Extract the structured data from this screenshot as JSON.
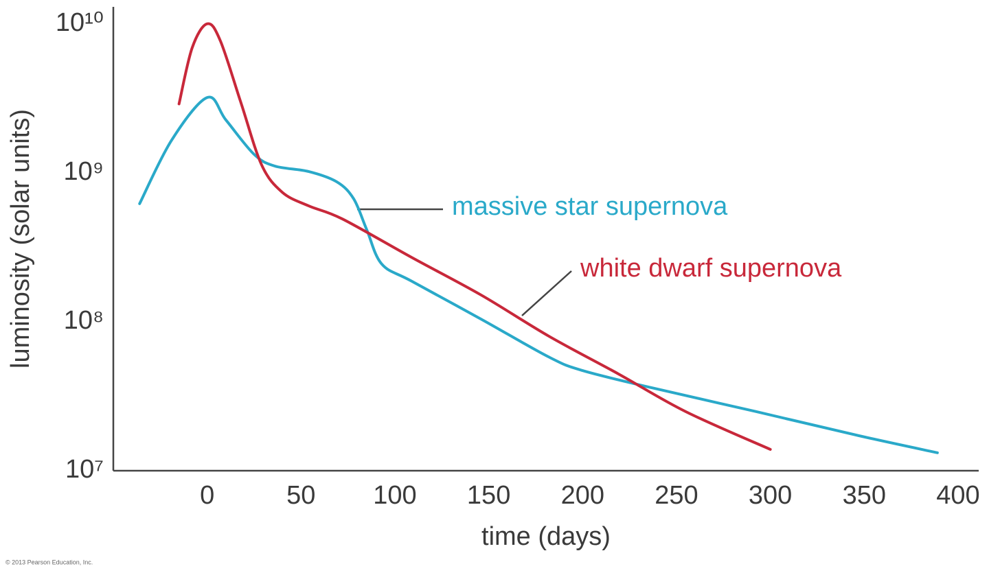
{
  "chart_data": {
    "type": "line",
    "x_label": "time (days)",
    "y_label": "luminosity (solar units)",
    "credit": "© 2013 Pearson Education, Inc.",
    "log_y": true,
    "grid": false,
    "xlim": [
      -50,
      411
    ],
    "ylim": [
      10000000,
      13000000000
    ],
    "xticks": [
      0,
      50,
      100,
      150,
      200,
      250,
      300,
      350,
      400
    ],
    "yticks": [
      {
        "value": 10000000,
        "label": "10⁷"
      },
      {
        "value": 100000000,
        "label": "10⁸"
      },
      {
        "value": 1000000000,
        "label": "10⁹"
      },
      {
        "value": 10000000000,
        "label": "10¹⁰"
      }
    ],
    "series": [
      {
        "name": "massive star supernova",
        "color": "#2aa9c9",
        "x": [
          -36,
          -19,
          0,
          10,
          25,
          36,
          54,
          69,
          78,
          85,
          93,
          109,
          146,
          182,
          200,
          237,
          292,
          347,
          389
        ],
        "values": [
          620000000,
          1650000000,
          3200000000,
          2260000000,
          1330000000,
          1110000000,
          1020000000,
          870000000,
          670000000,
          415000000,
          244000000,
          187000000,
          104000000,
          58000000,
          47000000,
          36000000,
          25000000,
          17200000,
          13200000
        ]
      },
      {
        "name": "white dwarf supernova",
        "color": "#c8283a",
        "x": [
          -15,
          -8,
          0,
          7,
          18,
          29,
          40,
          54,
          72,
          109,
          146,
          182,
          219,
          255,
          300
        ],
        "values": [
          2900000000,
          6900000000,
          10000000000,
          7700000000,
          2950000000,
          1130000000,
          740000000,
          600000000,
          490000000,
          270000000,
          151000000,
          80000000,
          44700000,
          24900000,
          13900000
        ]
      }
    ]
  }
}
